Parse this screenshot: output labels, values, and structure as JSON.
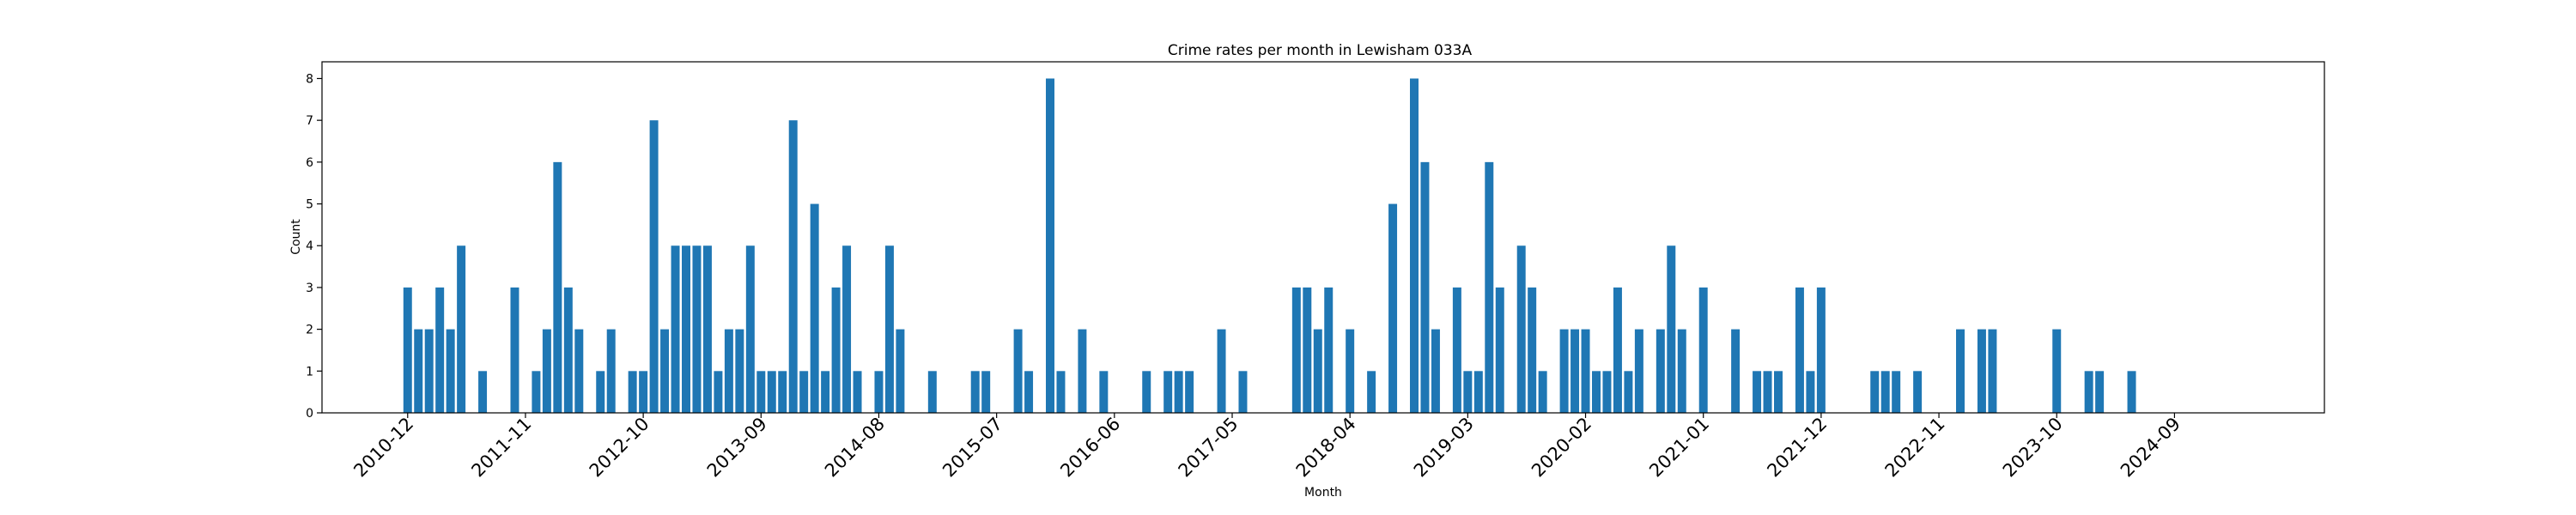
{
  "chart_data": {
    "type": "bar",
    "title": "Crime rates per month in Lewisham 033A",
    "xlabel": "Month",
    "ylabel": "Count",
    "color": "#1f77b4",
    "grid": false,
    "ylim": [
      0,
      8.4
    ],
    "yticks": [
      0,
      1,
      2,
      3,
      4,
      5,
      6,
      7,
      8
    ],
    "xticks": [
      "2010-12",
      "2011-11",
      "2012-10",
      "2013-09",
      "2014-08",
      "2015-07",
      "2016-06",
      "2017-05",
      "2018-04",
      "2019-03",
      "2020-02",
      "2021-01",
      "2021-12",
      "2022-11",
      "2023-10",
      "2024-09"
    ],
    "xlim": [
      "2010-04",
      "2025-11"
    ],
    "data": [
      [
        "2010-12",
        3
      ],
      [
        "2011-01",
        2
      ],
      [
        "2011-02",
        2
      ],
      [
        "2011-03",
        3
      ],
      [
        "2011-04",
        2
      ],
      [
        "2011-05",
        4
      ],
      [
        "2011-07",
        1
      ],
      [
        "2011-10",
        3
      ],
      [
        "2011-12",
        1
      ],
      [
        "2012-01",
        2
      ],
      [
        "2012-02",
        6
      ],
      [
        "2012-03",
        3
      ],
      [
        "2012-04",
        2
      ],
      [
        "2012-06",
        1
      ],
      [
        "2012-07",
        2
      ],
      [
        "2012-09",
        1
      ],
      [
        "2012-10",
        1
      ],
      [
        "2012-11",
        7
      ],
      [
        "2012-12",
        2
      ],
      [
        "2013-01",
        4
      ],
      [
        "2013-02",
        4
      ],
      [
        "2013-03",
        4
      ],
      [
        "2013-04",
        4
      ],
      [
        "2013-05",
        1
      ],
      [
        "2013-06",
        2
      ],
      [
        "2013-07",
        2
      ],
      [
        "2013-08",
        4
      ],
      [
        "2013-09",
        1
      ],
      [
        "2013-10",
        1
      ],
      [
        "2013-11",
        1
      ],
      [
        "2013-12",
        7
      ],
      [
        "2014-01",
        1
      ],
      [
        "2014-02",
        5
      ],
      [
        "2014-03",
        1
      ],
      [
        "2014-04",
        3
      ],
      [
        "2014-05",
        4
      ],
      [
        "2014-06",
        1
      ],
      [
        "2014-08",
        1
      ],
      [
        "2014-09",
        4
      ],
      [
        "2014-10",
        2
      ],
      [
        "2015-01",
        1
      ],
      [
        "2015-05",
        1
      ],
      [
        "2015-06",
        1
      ],
      [
        "2015-09",
        2
      ],
      [
        "2015-10",
        1
      ],
      [
        "2015-12",
        8
      ],
      [
        "2016-01",
        1
      ],
      [
        "2016-03",
        2
      ],
      [
        "2016-05",
        1
      ],
      [
        "2016-09",
        1
      ],
      [
        "2016-11",
        1
      ],
      [
        "2016-12",
        1
      ],
      [
        "2017-01",
        1
      ],
      [
        "2017-04",
        2
      ],
      [
        "2017-06",
        1
      ],
      [
        "2017-11",
        3
      ],
      [
        "2017-12",
        3
      ],
      [
        "2018-01",
        2
      ],
      [
        "2018-02",
        3
      ],
      [
        "2018-04",
        2
      ],
      [
        "2018-06",
        1
      ],
      [
        "2018-08",
        5
      ],
      [
        "2018-10",
        8
      ],
      [
        "2018-11",
        6
      ],
      [
        "2018-12",
        2
      ],
      [
        "2019-02",
        3
      ],
      [
        "2019-03",
        1
      ],
      [
        "2019-04",
        1
      ],
      [
        "2019-05",
        6
      ],
      [
        "2019-06",
        3
      ],
      [
        "2019-08",
        4
      ],
      [
        "2019-09",
        3
      ],
      [
        "2019-10",
        1
      ],
      [
        "2019-12",
        2
      ],
      [
        "2020-01",
        2
      ],
      [
        "2020-02",
        2
      ],
      [
        "2020-03",
        1
      ],
      [
        "2020-04",
        1
      ],
      [
        "2020-05",
        3
      ],
      [
        "2020-06",
        1
      ],
      [
        "2020-07",
        2
      ],
      [
        "2020-09",
        2
      ],
      [
        "2020-10",
        4
      ],
      [
        "2020-11",
        2
      ],
      [
        "2021-01",
        3
      ],
      [
        "2021-04",
        2
      ],
      [
        "2021-06",
        1
      ],
      [
        "2021-07",
        1
      ],
      [
        "2021-08",
        1
      ],
      [
        "2021-10",
        3
      ],
      [
        "2021-11",
        1
      ],
      [
        "2021-12",
        3
      ],
      [
        "2022-05",
        1
      ],
      [
        "2022-06",
        1
      ],
      [
        "2022-07",
        1
      ],
      [
        "2022-09",
        1
      ],
      [
        "2023-01",
        2
      ],
      [
        "2023-03",
        2
      ],
      [
        "2023-04",
        2
      ],
      [
        "2023-10",
        2
      ],
      [
        "2024-01",
        1
      ],
      [
        "2024-02",
        1
      ],
      [
        "2024-05",
        1
      ]
    ]
  }
}
